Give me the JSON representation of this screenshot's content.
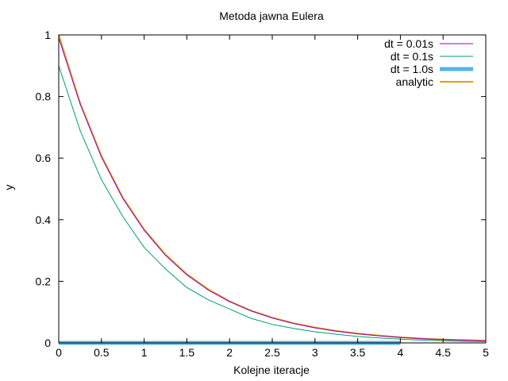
{
  "chart_data": {
    "type": "line",
    "title": "Metoda jawna Eulera",
    "xlabel": "Kolejne iteracje",
    "ylabel": "y",
    "xlim": [
      0,
      5
    ],
    "ylim": [
      0,
      1
    ],
    "x_ticks": [
      "0",
      "0.5",
      "1",
      "1.5",
      "2",
      "2.5",
      "3",
      "3.5",
      "4",
      "4.5",
      "5"
    ],
    "y_ticks": [
      "0",
      "0.2",
      "0.4",
      "0.6",
      "0.8",
      "1"
    ],
    "grid": false,
    "legend_position": "top-right",
    "series": [
      {
        "name": "dt = 0.01s",
        "color": "#9400d3",
        "x": [
          0,
          0.25,
          0.5,
          0.75,
          1,
          1.25,
          1.5,
          1.75,
          2,
          2.25,
          2.5,
          2.75,
          3,
          3.25,
          3.5,
          3.75,
          4,
          4.25,
          4.5,
          4.75,
          5
        ],
        "y": [
          0.99,
          0.776,
          0.603,
          0.469,
          0.366,
          0.284,
          0.221,
          0.172,
          0.134,
          0.104,
          0.081,
          0.063,
          0.049,
          0.038,
          0.03,
          0.023,
          0.018,
          0.014,
          0.011,
          0.009,
          0.007
        ]
      },
      {
        "name": "dt = 0.1s",
        "color": "#009e73",
        "x": [
          0,
          0.25,
          0.5,
          0.75,
          1,
          1.25,
          1.5,
          1.75,
          2,
          2.25,
          2.5,
          2.75,
          3,
          3.25,
          3.5,
          3.75,
          4,
          4.25,
          4.5,
          4.75,
          5
        ],
        "y": [
          0.9,
          0.69,
          0.53,
          0.41,
          0.31,
          0.24,
          0.18,
          0.14,
          0.11,
          0.08,
          0.06,
          0.047,
          0.036,
          0.028,
          0.021,
          0.016,
          0.012,
          0.009,
          0.007,
          0.005,
          0.004
        ]
      },
      {
        "name": "dt = 1.0s",
        "color": "#56b4e9",
        "x": [
          0,
          1,
          2,
          3,
          4
        ],
        "y": [
          0,
          0,
          0,
          0,
          0
        ]
      },
      {
        "name": "analytic",
        "color": "#e69f00",
        "x": [
          0,
          0.25,
          0.5,
          0.75,
          1,
          1.25,
          1.5,
          1.75,
          2,
          2.25,
          2.5,
          2.75,
          3,
          3.25,
          3.5,
          3.75,
          4,
          4.25,
          4.5,
          4.75,
          5
        ],
        "y": [
          1,
          0.779,
          0.607,
          0.472,
          0.368,
          0.287,
          0.223,
          0.174,
          0.135,
          0.105,
          0.082,
          0.064,
          0.05,
          0.039,
          0.03,
          0.024,
          0.018,
          0.014,
          0.011,
          0.009,
          0.007
        ]
      }
    ]
  }
}
